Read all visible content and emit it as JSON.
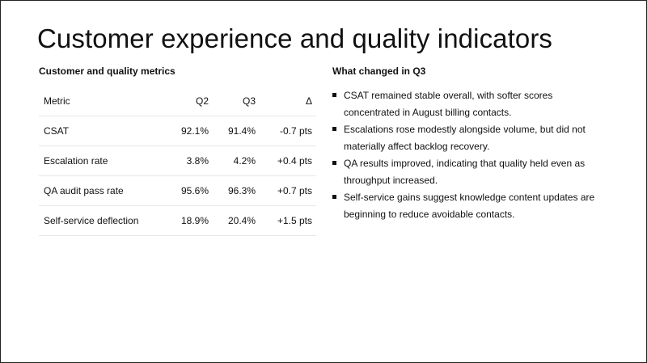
{
  "slide": {
    "title": "Customer experience and quality indicators"
  },
  "metrics_table": {
    "heading": "Customer and quality metrics",
    "columns": [
      "Metric",
      "Q2",
      "Q3",
      "Δ"
    ],
    "rows": [
      [
        "CSAT",
        "92.1%",
        "91.4%",
        "-0.7 pts"
      ],
      [
        "Escalation rate",
        "3.8%",
        "4.2%",
        "+0.4 pts"
      ],
      [
        "QA audit pass rate",
        "95.6%",
        "96.3%",
        "+0.7 pts"
      ],
      [
        "Self-service deflection",
        "18.9%",
        "20.4%",
        "+1.5 pts"
      ]
    ]
  },
  "changes": {
    "heading": "What changed in Q3",
    "bullets": [
      "CSAT remained stable overall, with softer scores concentrated in August billing contacts.",
      "Escalations rose modestly alongside volume, but did not materially affect backlog recovery.",
      "QA results improved, indicating that quality held even as throughput increased.",
      "Self-service gains suggest knowledge content updates are beginning to reduce avoidable contacts."
    ]
  }
}
